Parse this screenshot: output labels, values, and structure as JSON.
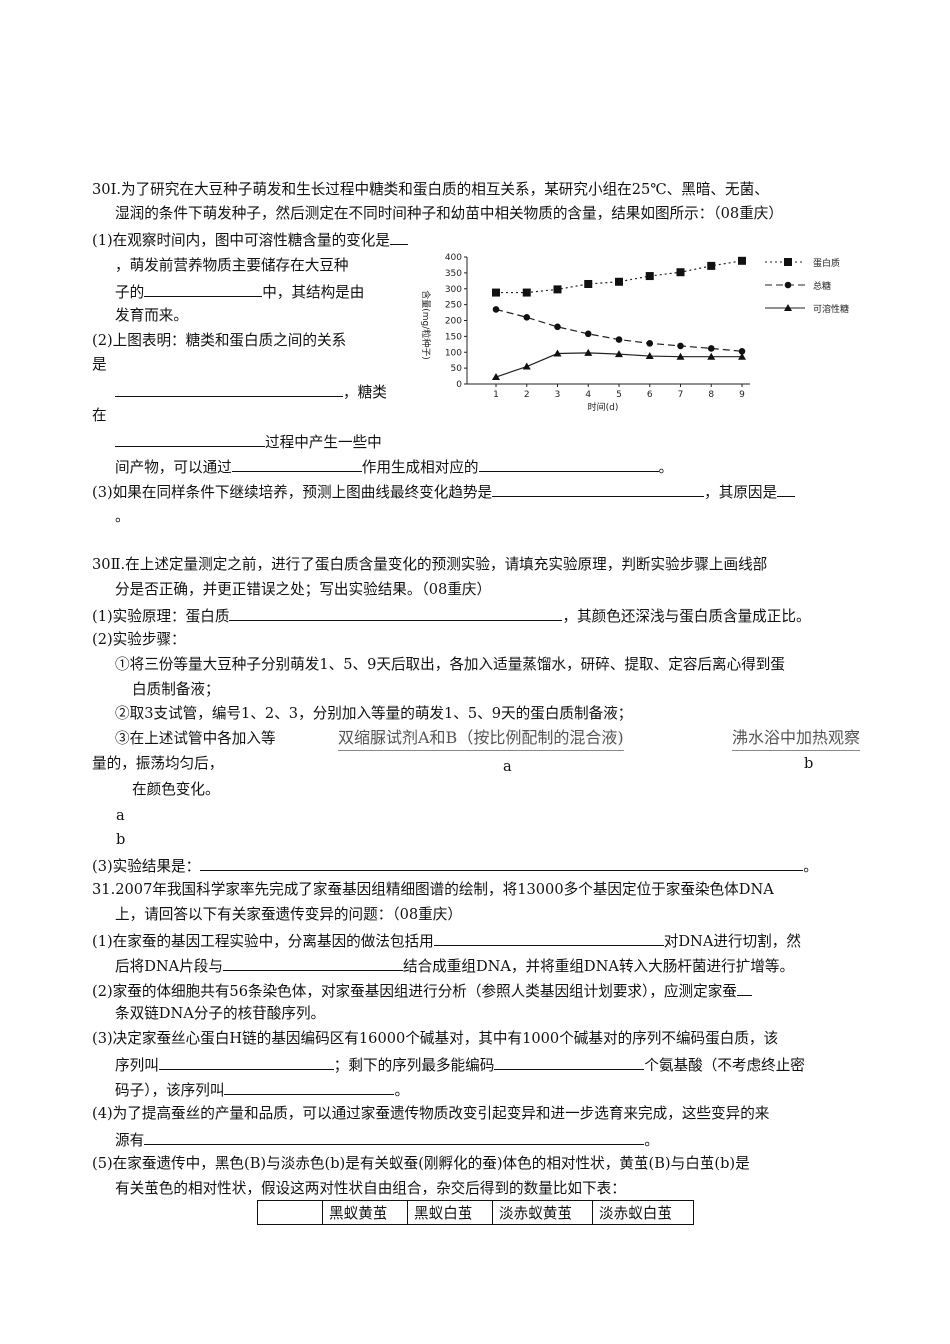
{
  "q30a": {
    "l1": "30Ⅰ.为了研究在大豆种子萌发和生长过程中糖类和蛋白质的相互关系，某研究小组在25℃、黑暗、无菌、",
    "l2": "湿润的条件下萌发种子，然后测定在不同时间种子和幼苗中相关物质的含量，结果如图所示：（08重庆）",
    "l3": "(1)在观察时间内，图中可溶性糖含量的变化是",
    "l4": "，萌发前营养物质主要储存在大豆种",
    "l5a": "子的",
    "l5b": "中，其结构是由",
    "l6": "发育而来。",
    "l7": "(2)上图表明：糖类和蛋白质之间的关系",
    "l8": "是",
    "l9": "，糖类",
    "l10": "在",
    "l11": "过程中产生一些中",
    "l12a": "间产物，可以通过",
    "l12b": "作用生成相对应的",
    "l12c": "。",
    "l13a": "(3)如果在同样条件下继续培养，预测上图曲线最终变化趋势是",
    "l13b": "，其原因是",
    "l14": "。"
  },
  "chart_data": {
    "type": "line",
    "x": [
      1,
      2,
      3,
      4,
      5,
      6,
      7,
      8,
      9
    ],
    "xlabel": "时间(d)",
    "ylabel": "含量(mg/粒种子)",
    "ylim": [
      0,
      400
    ],
    "yticks": [
      0,
      50,
      100,
      150,
      200,
      250,
      300,
      350,
      400
    ],
    "legend": "right",
    "series": [
      {
        "name": "蛋白质",
        "marker": "square",
        "style": "dotted",
        "values": [
          288,
          288,
          298,
          315,
          322,
          340,
          352,
          372,
          388
        ]
      },
      {
        "name": "总糖",
        "marker": "circle",
        "style": "dashed",
        "values": [
          235,
          210,
          180,
          158,
          140,
          128,
          120,
          112,
          103
        ]
      },
      {
        "name": "可溶性糖",
        "marker": "triangle",
        "style": "solid",
        "values": [
          22,
          55,
          96,
          98,
          94,
          88,
          86,
          86,
          86
        ]
      }
    ]
  },
  "q30b": {
    "l1": "30Ⅱ.在上述定量测定之前，进行了蛋白质含量变化的预测实验，请填充实验原理，判断实验步骤上画线部",
    "l2": "分是否正确，并更正错误之处；写出实验结果。（08重庆）",
    "l3a": "(1)实验原理：蛋白质",
    "l3b": "，其颜色还深浅与蛋白质含量成正比。",
    "l4": "(2)实验步骤：",
    "l5": "①将三份等量大豆种子分别萌发1、5、9天后取出，各加入适量蒸馏水，研碎、提取、定容后离心得到蛋",
    "l6": "白质制备液；",
    "l7": "②取3支试管，编号1、2、3，分别加入等量的萌发1、5、9天的蛋白质制备液；",
    "l8": "③在上述试管中各加入等",
    "insert_a": "双缩脲试剂A和B（按比例配制的混合液)",
    "insert_b": "沸水浴中加热观察",
    "mark_a": "a",
    "mark_b": "b",
    "l9": "量的，振荡均匀后，",
    "l10": "在颜色变化。",
    "l11": "a",
    "l12": "b",
    "l13a": "(3)实验结果是：",
    "l13b": "。"
  },
  "q31": {
    "l1": "31.2007年我国科学家率先完成了家蚕基因组精细图谱的绘制，将13000多个基因定位于家蚕染色体DNA",
    "l2": "上，请回答以下有关家蚕遗传变异的问题：（08重庆）",
    "l3a": "(1)在家蚕的基因工程实验中，分离基因的做法包括用",
    "l3b": "对DNA进行切割，然",
    "l4a": "后将DNA片段与",
    "l4b": "结合成重组DNA，并将重组DNA转入大肠杆菌进行扩增等。",
    "l5": "(2)家蚕的体细胞共有56条染色体，对家蚕基因组进行分析（参照人类基因组计划要求），应测定家蚕",
    "l6": "条双链DNA分子的核苷酸序列。",
    "l7": "(3)决定家蚕丝心蛋白H链的基因编码区有16000个碱基对，其中有1000个碱基对的序列不编码蛋白质，该",
    "l8a": "序列叫",
    "l8b": "；剩下的序列最多能编码",
    "l8c": "个氨基酸（不考虑终止密",
    "l9a": "码子），该序列叫",
    "l9b": "。",
    "l10": "(4)为了提高蚕丝的产量和品质，可以通过家蚕遗传物质改变引起变异和进一步选育来完成，这些变异的来",
    "l11a": "源有",
    "l11b": "。",
    "l12": "(5)在家蚕遗传中，黑色(B)与淡赤色(b)是有关蚁蚕(刚孵化的蚕)体色的相对性状，黄茧(B)与白茧(b)是",
    "l13": "有关茧色的相对性状，假设这两对性状自由组合，杂交后得到的数量比如下表：",
    "table_headers": [
      "",
      "黑蚁黄茧",
      "黑蚁白茧",
      "淡赤蚁黄茧",
      "淡赤蚁白茧"
    ]
  }
}
